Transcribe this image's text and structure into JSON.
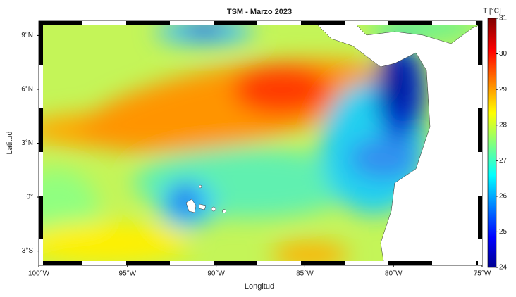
{
  "map": {
    "title": "TSM - Marzo 2023",
    "x_label": "Longitud",
    "y_label": "Latitud",
    "xlim": [
      -100,
      -75
    ],
    "xticks": [
      {
        "value": -100,
        "label": "100°W"
      },
      {
        "value": -95,
        "label": "95°W"
      },
      {
        "value": -90,
        "label": "90°W"
      },
      {
        "value": -85,
        "label": "85°W"
      },
      {
        "value": -80,
        "label": "80°W"
      },
      {
        "value": -75,
        "label": "75°W"
      }
    ],
    "ylim": [
      -3.8,
      9.8
    ],
    "yticks": [
      {
        "value": -3,
        "label": "3°S"
      },
      {
        "value": 0,
        "label": "0°"
      },
      {
        "value": 3,
        "label": "3°N"
      },
      {
        "value": 6,
        "label": "6°N"
      },
      {
        "value": 9,
        "label": "9°N"
      }
    ],
    "colorbar": {
      "label": "T [°C]",
      "lim": [
        24,
        31
      ],
      "ticks": [
        24,
        25,
        26,
        27,
        28,
        29,
        30,
        31
      ]
    }
  }
}
